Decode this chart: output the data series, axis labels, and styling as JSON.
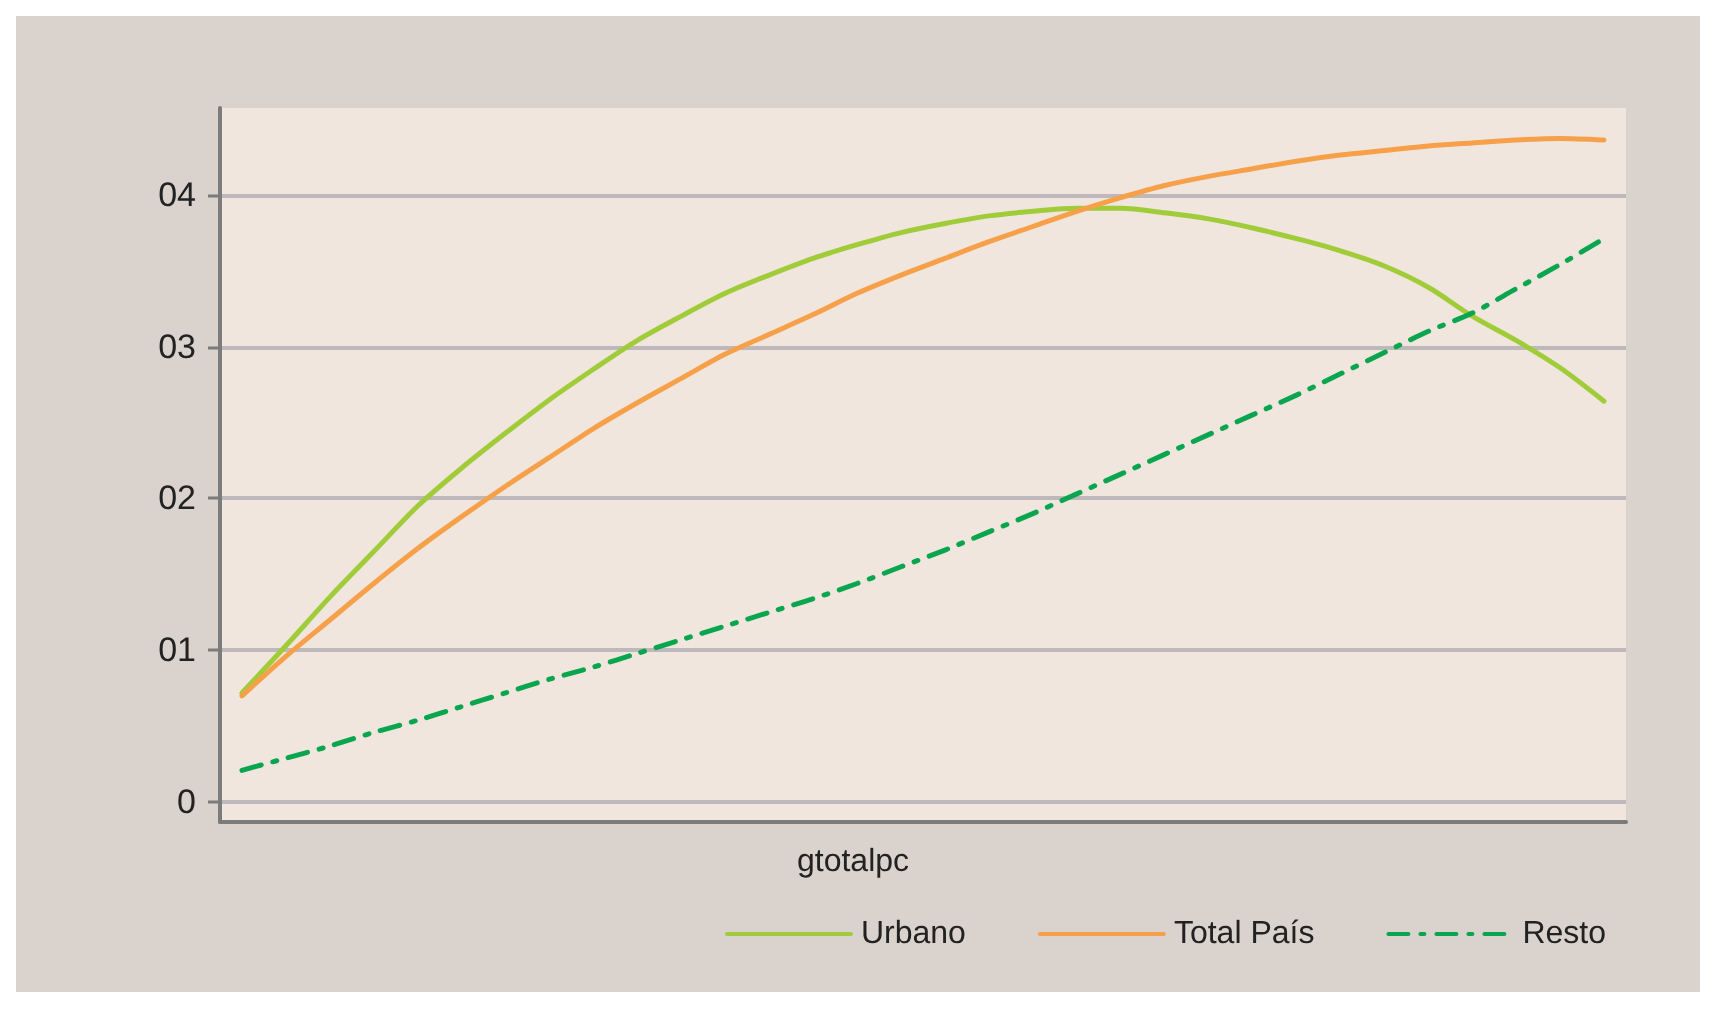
{
  "chart_data": {
    "type": "line",
    "xlabel": "gtotalpc",
    "categories": [
      null,
      null,
      null,
      null,
      null,
      null,
      null,
      null,
      null,
      null,
      null,
      null,
      null,
      null,
      null,
      null,
      null,
      null,
      null,
      null,
      null,
      null,
      null,
      null,
      null,
      null,
      null,
      null,
      null,
      null,
      null,
      null
    ],
    "series": [
      {
        "name": "Urbano",
        "color": "#a0cc3a",
        "values": [
          0.72,
          1.03,
          1.35,
          1.65,
          1.95,
          2.2,
          2.43,
          2.65,
          2.85,
          3.04,
          3.2,
          3.35,
          3.47,
          3.58,
          3.67,
          3.75,
          3.81,
          3.86,
          3.89,
          3.91,
          3.91,
          3.88,
          3.84,
          3.78,
          3.71,
          3.63,
          3.53,
          3.39,
          3.2,
          3.04,
          2.86,
          2.64
        ]
      },
      {
        "name": "Total País",
        "color": "#f7a04a",
        "values": [
          0.7,
          0.96,
          1.2,
          1.44,
          1.67,
          1.88,
          2.08,
          2.27,
          2.46,
          2.63,
          2.79,
          2.95,
          3.08,
          3.21,
          3.35,
          3.47,
          3.58,
          3.69,
          3.79,
          3.89,
          3.98,
          4.06,
          4.12,
          4.17,
          4.22,
          4.26,
          4.29,
          4.32,
          4.34,
          4.36,
          4.37,
          4.36
        ]
      },
      {
        "name": "Resto",
        "color": "#0aa64f",
        "line_style": "dashed",
        "values": [
          0.21,
          0.29,
          0.37,
          0.46,
          0.54,
          0.63,
          0.72,
          0.81,
          0.89,
          0.98,
          1.07,
          1.16,
          1.25,
          1.34,
          1.44,
          1.55,
          1.66,
          1.78,
          1.9,
          2.03,
          2.16,
          2.29,
          2.42,
          2.55,
          2.68,
          2.82,
          2.96,
          3.1,
          3.22,
          3.38,
          3.54,
          3.71
        ]
      }
    ],
    "ylim": [
      -0.13,
      4.57
    ],
    "yticks": [
      0,
      {
        "value": 1,
        "label": "01"
      },
      {
        "value": 2,
        "label": "02"
      },
      {
        "value": 3,
        "label": "03"
      },
      {
        "value": 4,
        "label": "04"
      }
    ],
    "grid": "y",
    "legend": "bottom right",
    "tick_labels": "y",
    "marker": "none",
    "line_style": "solid"
  }
}
